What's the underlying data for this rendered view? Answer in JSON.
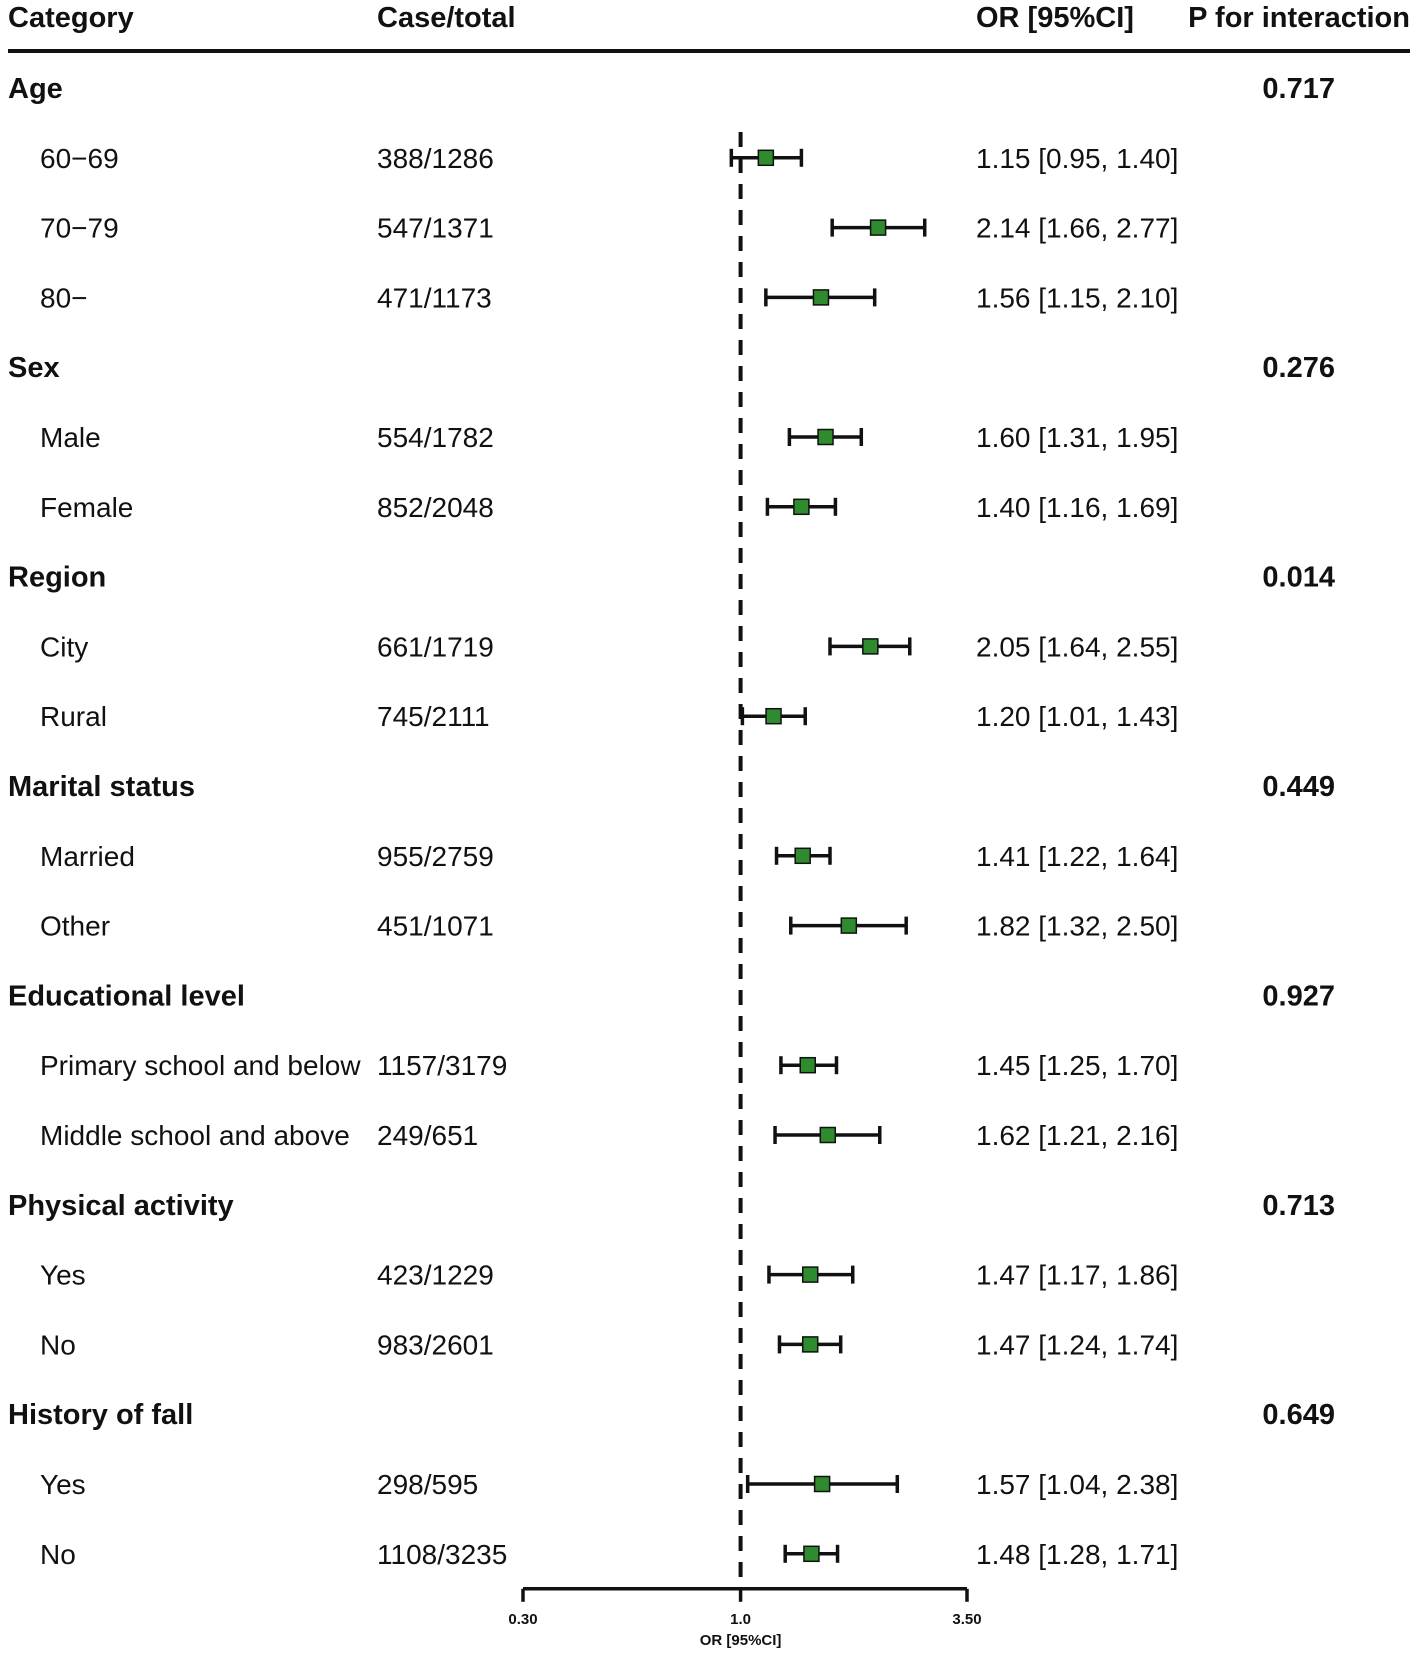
{
  "columns": {
    "category": "Category",
    "case_total": "Case/total",
    "or_ci": "OR [95%CI]",
    "p_interaction": "P for interaction"
  },
  "chart_data": {
    "type": "forest",
    "x_scale": "log",
    "xlim": [
      0.3,
      3.5
    ],
    "xticks": [
      {
        "value": 0.3,
        "label": "0.30"
      },
      {
        "value": 1.0,
        "label": "1.0"
      },
      {
        "value": 3.5,
        "label": "3.50"
      }
    ],
    "reference_line": 1.0,
    "xlabel": "OR [95%CI]",
    "marker_color": "#2e8b2e",
    "rows": [
      {
        "kind": "group",
        "label": "Age",
        "p": "0.717"
      },
      {
        "kind": "item",
        "label": "60−69",
        "case_total": "388/1286",
        "or": 1.15,
        "lo": 0.95,
        "hi": 1.4,
        "or_text": "1.15 [0.95, 1.40]"
      },
      {
        "kind": "item",
        "label": "70−79",
        "case_total": "547/1371",
        "or": 2.14,
        "lo": 1.66,
        "hi": 2.77,
        "or_text": "2.14 [1.66, 2.77]"
      },
      {
        "kind": "item",
        "label": "80−",
        "case_total": "471/1173",
        "or": 1.56,
        "lo": 1.15,
        "hi": 2.1,
        "or_text": "1.56 [1.15, 2.10]"
      },
      {
        "kind": "group",
        "label": "Sex",
        "p": "0.276"
      },
      {
        "kind": "item",
        "label": "Male",
        "case_total": "554/1782",
        "or": 1.6,
        "lo": 1.31,
        "hi": 1.95,
        "or_text": "1.60 [1.31, 1.95]"
      },
      {
        "kind": "item",
        "label": "Female",
        "case_total": "852/2048",
        "or": 1.4,
        "lo": 1.16,
        "hi": 1.69,
        "or_text": "1.40 [1.16, 1.69]"
      },
      {
        "kind": "group",
        "label": "Region",
        "p": "0.014"
      },
      {
        "kind": "item",
        "label": "City",
        "case_total": "661/1719",
        "or": 2.05,
        "lo": 1.64,
        "hi": 2.55,
        "or_text": "2.05 [1.64, 2.55]"
      },
      {
        "kind": "item",
        "label": "Rural",
        "case_total": "745/2111",
        "or": 1.2,
        "lo": 1.01,
        "hi": 1.43,
        "or_text": "1.20 [1.01, 1.43]"
      },
      {
        "kind": "group",
        "label": "Marital status",
        "p": "0.449"
      },
      {
        "kind": "item",
        "label": "Married",
        "case_total": "955/2759",
        "or": 1.41,
        "lo": 1.22,
        "hi": 1.64,
        "or_text": "1.41 [1.22, 1.64]"
      },
      {
        "kind": "item",
        "label": "Other",
        "case_total": "451/1071",
        "or": 1.82,
        "lo": 1.32,
        "hi": 2.5,
        "or_text": "1.82 [1.32, 2.50]"
      },
      {
        "kind": "group",
        "label": "Educational level",
        "p": "0.927"
      },
      {
        "kind": "item",
        "label": "Primary school and below",
        "case_total": "1157/3179",
        "or": 1.45,
        "lo": 1.25,
        "hi": 1.7,
        "or_text": "1.45 [1.25, 1.70]"
      },
      {
        "kind": "item",
        "label": "Middle school and above",
        "case_total": "249/651",
        "or": 1.62,
        "lo": 1.21,
        "hi": 2.16,
        "or_text": "1.62 [1.21, 2.16]"
      },
      {
        "kind": "group",
        "label": "Physical activity",
        "p": "0.713"
      },
      {
        "kind": "item",
        "label": "Yes",
        "case_total": "423/1229",
        "or": 1.47,
        "lo": 1.17,
        "hi": 1.86,
        "or_text": "1.47 [1.17, 1.86]"
      },
      {
        "kind": "item",
        "label": "No",
        "case_total": "983/2601",
        "or": 1.47,
        "lo": 1.24,
        "hi": 1.74,
        "or_text": "1.47 [1.24, 1.74]"
      },
      {
        "kind": "group",
        "label": "History of fall",
        "p": "0.649"
      },
      {
        "kind": "item",
        "label": "Yes",
        "case_total": "298/595",
        "or": 1.57,
        "lo": 1.04,
        "hi": 2.38,
        "or_text": "1.57 [1.04, 2.38]"
      },
      {
        "kind": "item",
        "label": "No",
        "case_total": "1108/3235",
        "or": 1.48,
        "lo": 1.28,
        "hi": 1.71,
        "or_text": "1.48 [1.28, 1.71]"
      }
    ]
  }
}
